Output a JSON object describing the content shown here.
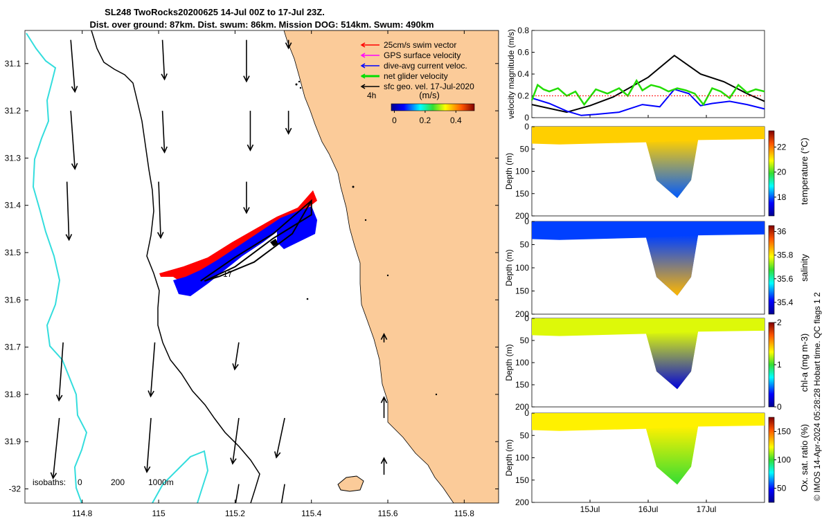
{
  "title": {
    "line1": "SL248 TwoRocks20200625 14-Jul 00Z to 17-Jul 23Z.",
    "line2": "Dist. over ground: 87km. Dist. swum: 86km. Mission DOG: 514km. Swum: 490km"
  },
  "map": {
    "legend": [
      {
        "label": "25cm/s swim vector",
        "color": "#ff0000"
      },
      {
        "label": "GPS surface velocity",
        "color": "#ff00ff"
      },
      {
        "label": "dive-avg current veloc.",
        "color": "#0000ff"
      },
      {
        "label": "net glider velocity",
        "color": "#00dd00"
      },
      {
        "label": "sfc geo. vel. 17-Jul-2020",
        "color": "#000000"
      }
    ],
    "colorbar_label": "(m/s)",
    "colorbar_ticks": [
      "0",
      "0.2",
      "0.4"
    ],
    "hours_label": "4h",
    "isobaths_label": "isobaths:",
    "isobath_values": [
      "0",
      "200",
      "1000m"
    ],
    "track_label": "17",
    "land_color": "#fbcb99",
    "contour_200_color": "#000000",
    "contour_1000_color": "#33dddd"
  },
  "side_label": "© IMOS 14-Apr-2024 05:28:28 Hobart time. QC flags 1  2",
  "chart_data": [
    {
      "type": "scatter",
      "title": "",
      "xlabel": "",
      "ylabel": "",
      "x_ticks": [
        "114.8",
        "115",
        "115.2",
        "115.4",
        "115.6",
        "115.8"
      ],
      "y_ticks": [
        "31.1",
        "31.2",
        "31.3",
        "31.4",
        "31.5",
        "31.6",
        "31.7",
        "31.8",
        "31.9",
        "-32"
      ],
      "xlim": [
        114.65,
        115.89
      ],
      "ylim": [
        -32.03,
        -31.03
      ],
      "series": [
        {
          "name": "sfc geo. vel. 17-Jul-2020",
          "color": "#000000",
          "kind": "vectors"
        },
        {
          "name": "dive-avg current veloc.",
          "color": "#0000ff",
          "kind": "track"
        },
        {
          "name": "25cm/s swim vector",
          "color": "#ff0000",
          "kind": "vectors"
        }
      ],
      "glider_track": {
        "lon": [
          115.11,
          115.2,
          115.3,
          115.4,
          115.4,
          115.3,
          115.2,
          115.12,
          115.16,
          115.25,
          115.35,
          115.4
        ],
        "lat": [
          -31.56,
          -31.51,
          -31.46,
          -31.39,
          -31.42,
          -31.47,
          -31.53,
          -31.56,
          -31.55,
          -31.52,
          -31.46,
          -31.39
        ]
      },
      "current_vectors": [
        {
          "lon": 114.77,
          "lat": -31.05,
          "u": 0.02,
          "v": -0.25
        },
        {
          "lon": 115.01,
          "lat": -31.05,
          "u": 0.01,
          "v": -0.19
        },
        {
          "lon": 115.23,
          "lat": -31.05,
          "u": 0.0,
          "v": -0.2
        },
        {
          "lon": 115.34,
          "lat": -31.05,
          "u": 0.0,
          "v": -0.04
        },
        {
          "lon": 114.77,
          "lat": -31.2,
          "u": 0.02,
          "v": -0.28
        },
        {
          "lon": 115.01,
          "lat": -31.2,
          "u": 0.01,
          "v": -0.2
        },
        {
          "lon": 115.24,
          "lat": -31.2,
          "u": 0.0,
          "v": -0.19
        },
        {
          "lon": 115.34,
          "lat": -31.2,
          "u": 0.0,
          "v": -0.11
        },
        {
          "lon": 114.76,
          "lat": -31.35,
          "u": 0.01,
          "v": -0.28
        },
        {
          "lon": 115.0,
          "lat": -31.35,
          "u": 0.01,
          "v": -0.27
        },
        {
          "lon": 115.23,
          "lat": -31.35,
          "u": 0.0,
          "v": -0.15
        },
        {
          "lon": 114.75,
          "lat": -31.69,
          "u": -0.02,
          "v": -0.28
        },
        {
          "lon": 114.99,
          "lat": -31.69,
          "u": -0.02,
          "v": -0.26
        },
        {
          "lon": 115.21,
          "lat": -31.69,
          "u": -0.02,
          "v": -0.13
        },
        {
          "lon": 114.74,
          "lat": -31.85,
          "u": -0.03,
          "v": -0.29
        },
        {
          "lon": 114.98,
          "lat": -31.85,
          "u": -0.02,
          "v": -0.26
        },
        {
          "lon": 115.21,
          "lat": -31.85,
          "u": -0.03,
          "v": -0.22
        },
        {
          "lon": 115.33,
          "lat": -31.85,
          "u": -0.04,
          "v": -0.19
        },
        {
          "lon": 115.21,
          "lat": -31.99,
          "u": -0.02,
          "v": -0.12
        },
        {
          "lon": 115.33,
          "lat": -31.99,
          "u": -0.02,
          "v": -0.12
        },
        {
          "lon": 115.59,
          "lat": -31.85,
          "u": 0.0,
          "v": 0.1
        },
        {
          "lon": 115.59,
          "lat": -31.69,
          "u": 0.0,
          "v": 0.04
        },
        {
          "lon": 115.59,
          "lat": -31.97,
          "u": 0.0,
          "v": 0.08
        }
      ]
    },
    {
      "type": "line",
      "title": "",
      "xlabel": "",
      "ylabel": "velocity magnitude (m/s)",
      "ylim": [
        0,
        0.8
      ],
      "y_ticks": [
        "0",
        "0.2",
        "0.4",
        "0.6",
        "0.8"
      ],
      "x_ticks": [
        "15Jul",
        "16Jul",
        "17Jul"
      ],
      "xlim": [
        0,
        4
      ],
      "series": [
        {
          "color": "#000000",
          "x": [
            0.0,
            0.6,
            1.0,
            1.4,
            2.0,
            2.45,
            2.9,
            3.3,
            3.7,
            4.0
          ],
          "values": [
            0.12,
            0.05,
            0.11,
            0.19,
            0.37,
            0.57,
            0.4,
            0.33,
            0.22,
            0.15
          ]
        },
        {
          "color": "#0000ff",
          "x": [
            0.0,
            0.3,
            0.6,
            0.85,
            1.1,
            1.5,
            1.9,
            2.2,
            2.45,
            2.7,
            2.9,
            3.1,
            3.4,
            3.7,
            4.0
          ],
          "values": [
            0.18,
            0.13,
            0.06,
            0.02,
            0.03,
            0.05,
            0.12,
            0.1,
            0.26,
            0.22,
            0.11,
            0.13,
            0.15,
            0.12,
            0.08
          ]
        },
        {
          "color": "#22dd00",
          "x": [
            0.0,
            0.1,
            0.2,
            0.3,
            0.45,
            0.6,
            0.75,
            0.9,
            1.1,
            1.3,
            1.5,
            1.65,
            1.8,
            1.9,
            2.05,
            2.2,
            2.35,
            2.5,
            2.65,
            2.8,
            2.95,
            3.1,
            3.25,
            3.4,
            3.55,
            3.7,
            3.85,
            4.0
          ],
          "values": [
            0.16,
            0.3,
            0.26,
            0.24,
            0.27,
            0.2,
            0.24,
            0.12,
            0.26,
            0.22,
            0.27,
            0.2,
            0.34,
            0.25,
            0.3,
            0.28,
            0.24,
            0.27,
            0.25,
            0.22,
            0.12,
            0.27,
            0.24,
            0.18,
            0.3,
            0.23,
            0.26,
            0.24
          ]
        }
      ]
    },
    {
      "type": "heatmap",
      "title": "",
      "xlabel": "",
      "ylabel": "Depth (m)",
      "colorbar_label": "temperature (°C)",
      "colorbar_ticks": [
        "18",
        "20",
        "22"
      ],
      "clim": [
        16.5,
        23.3
      ],
      "surface_value": 21.3,
      "deep_value": 18.0,
      "ylim": [
        200,
        0
      ],
      "y_ticks": [
        "0",
        "50",
        "100",
        "150",
        "200"
      ]
    },
    {
      "type": "heatmap",
      "title": "",
      "xlabel": "",
      "ylabel": "Depth (m)",
      "colorbar_label": "salinity",
      "colorbar_ticks": [
        "35.4",
        "35.6",
        "35.8",
        "36"
      ],
      "clim": [
        35.3,
        36.05
      ],
      "surface_value": 35.45,
      "deep_value": 35.85,
      "ylim": [
        200,
        0
      ],
      "y_ticks": [
        "0",
        "50",
        "100",
        "150",
        "200"
      ]
    },
    {
      "type": "heatmap",
      "title": "",
      "xlabel": "",
      "ylabel": "Depth (m)",
      "colorbar_label": "chl-a (mg m-3)",
      "colorbar_ticks": [
        "0",
        "1",
        "2"
      ],
      "clim": [
        0,
        2
      ],
      "surface_value": 1.25,
      "deep_value": 0.2,
      "ylim": [
        200,
        0
      ],
      "y_ticks": [
        "0",
        "50",
        "100",
        "150",
        "200"
      ]
    },
    {
      "type": "heatmap",
      "title": "",
      "xlabel": "",
      "ylabel": "Depth (m)",
      "colorbar_label": "Ox. sat. ratio (%)",
      "colorbar_ticks": [
        "50",
        "100",
        "150"
      ],
      "clim": [
        25,
        175
      ],
      "surface_value": 125,
      "deep_value": 100,
      "ylim": [
        200,
        0
      ],
      "y_ticks": [
        "0",
        "50",
        "100",
        "150",
        "200"
      ]
    }
  ]
}
